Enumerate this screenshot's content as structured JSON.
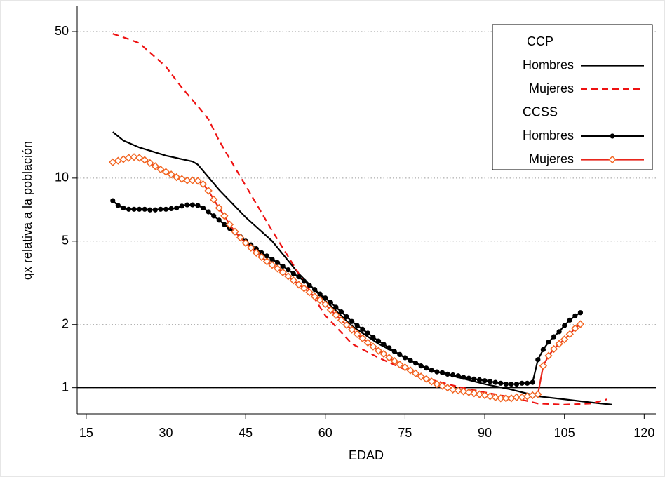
{
  "chart_data": {
    "type": "line",
    "x_label": "EDAD",
    "y_label": "qx relativa a la población",
    "xlim": [
      13.3,
      122.2
    ],
    "xticks": [
      15,
      30,
      45,
      60,
      75,
      90,
      105,
      120
    ],
    "ylim": [
      0.75,
      66.5
    ],
    "yticks": [
      1,
      2,
      5,
      10,
      50
    ],
    "y_log": true,
    "grid": true,
    "reference_line": 1,
    "legend_position": "top-right",
    "series_groups": [
      {
        "name": "CCP",
        "series": [
          {
            "name": "Hombres",
            "color": "#000000",
            "line_style": "solid",
            "marker": null,
            "x": [
              20,
              22,
              25,
              30,
              35,
              36,
              40,
              45,
              50,
              55,
              60,
              65,
              70,
              75,
              80,
              85,
              90,
              95,
              100,
              105,
              110,
              114
            ],
            "values": [
              16.6,
              15.1,
              14.0,
              12.8,
              12.0,
              11.6,
              8.8,
              6.5,
              5.0,
              3.5,
              2.6,
              1.97,
              1.62,
              1.39,
              1.21,
              1.12,
              1.04,
              0.98,
              0.91,
              0.88,
              0.85,
              0.83
            ]
          },
          {
            "name": "Mujeres",
            "color": "#ee1111",
            "line_style": "dashed",
            "marker": null,
            "x": [
              20,
              23,
              25,
              30,
              33,
              36,
              38,
              40,
              45,
              50,
              55,
              60,
              65,
              70,
              75,
              80,
              85,
              90,
              95,
              100,
              105,
              110,
              113
            ],
            "values": [
              48.8,
              46,
              44,
              34,
              27,
              22,
              19.1,
              15.1,
              9.2,
              5.6,
              3.5,
              2.21,
              1.62,
              1.39,
              1.22,
              1.09,
              1.01,
              0.95,
              0.9,
              0.84,
              0.83,
              0.84,
              0.88
            ]
          }
        ]
      },
      {
        "name": "CCSS",
        "series": [
          {
            "name": "Hombres",
            "color": "#000000",
            "line_style": "solid",
            "marker": "circle",
            "marker_color": "#000000",
            "x": [
              20,
              21,
              22,
              23,
              24,
              25,
              26,
              27,
              28,
              29,
              30,
              31,
              32,
              33,
              34,
              35,
              36,
              37,
              38,
              39,
              40,
              41,
              42,
              43,
              44,
              45,
              46,
              47,
              48,
              49,
              50,
              51,
              52,
              53,
              54,
              55,
              56,
              57,
              58,
              59,
              60,
              61,
              62,
              63,
              64,
              65,
              66,
              67,
              68,
              69,
              70,
              71,
              72,
              73,
              74,
              75,
              76,
              77,
              78,
              79,
              80,
              81,
              82,
              83,
              84,
              85,
              86,
              87,
              88,
              89,
              90,
              91,
              92,
              93,
              94,
              95,
              96,
              97,
              98,
              99,
              100,
              101,
              102,
              103,
              104,
              105,
              106,
              107,
              108
            ],
            "values": [
              7.8,
              7.4,
              7.2,
              7.1,
              7.1,
              7.1,
              7.1,
              7.05,
              7.05,
              7.1,
              7.1,
              7.15,
              7.2,
              7.35,
              7.45,
              7.45,
              7.4,
              7.2,
              6.9,
              6.6,
              6.3,
              6.0,
              5.75,
              5.5,
              5.25,
              5.0,
              4.8,
              4.6,
              4.4,
              4.25,
              4.1,
              3.95,
              3.8,
              3.65,
              3.5,
              3.38,
              3.22,
              3.08,
              2.94,
              2.8,
              2.68,
              2.55,
              2.42,
              2.3,
              2.18,
              2.07,
              1.98,
              1.9,
              1.82,
              1.74,
              1.67,
              1.61,
              1.55,
              1.49,
              1.44,
              1.39,
              1.35,
              1.31,
              1.27,
              1.24,
              1.21,
              1.19,
              1.18,
              1.16,
              1.15,
              1.14,
              1.12,
              1.11,
              1.1,
              1.09,
              1.08,
              1.07,
              1.06,
              1.05,
              1.04,
              1.04,
              1.04,
              1.05,
              1.05,
              1.06,
              1.36,
              1.52,
              1.65,
              1.75,
              1.85,
              1.98,
              2.1,
              2.2,
              2.28
            ]
          },
          {
            "name": "Mujeres",
            "color": "#e8261c",
            "line_style": "solid",
            "marker": "diamond",
            "marker_color": "#f26522",
            "x": [
              20,
              21,
              22,
              23,
              24,
              25,
              26,
              27,
              28,
              29,
              30,
              31,
              32,
              33,
              34,
              35,
              36,
              37,
              38,
              39,
              40,
              41,
              42,
              43,
              44,
              45,
              46,
              47,
              48,
              49,
              50,
              51,
              52,
              53,
              54,
              55,
              56,
              57,
              58,
              59,
              60,
              61,
              62,
              63,
              64,
              65,
              66,
              67,
              68,
              69,
              70,
              71,
              72,
              73,
              74,
              75,
              76,
              77,
              78,
              79,
              80,
              81,
              82,
              83,
              84,
              85,
              86,
              87,
              88,
              89,
              90,
              91,
              92,
              93,
              94,
              95,
              96,
              97,
              98,
              99,
              100,
              101,
              102,
              103,
              104,
              105,
              106,
              107,
              108
            ],
            "values": [
              11.9,
              12.1,
              12.3,
              12.5,
              12.6,
              12.5,
              12.2,
              11.8,
              11.4,
              11.0,
              10.7,
              10.4,
              10.1,
              9.9,
              9.75,
              9.75,
              9.7,
              9.35,
              8.7,
              7.9,
              7.2,
              6.6,
              6.0,
              5.55,
              5.2,
              4.9,
              4.65,
              4.4,
              4.2,
              4.0,
              3.85,
              3.7,
              3.55,
              3.4,
              3.25,
              3.1,
              2.98,
              2.85,
              2.72,
              2.62,
              2.5,
              2.35,
              2.22,
              2.1,
              1.99,
              1.89,
              1.8,
              1.72,
              1.64,
              1.57,
              1.5,
              1.45,
              1.39,
              1.34,
              1.29,
              1.25,
              1.21,
              1.17,
              1.13,
              1.1,
              1.07,
              1.04,
              1.02,
              1.0,
              0.98,
              0.97,
              0.96,
              0.95,
              0.94,
              0.93,
              0.92,
              0.91,
              0.9,
              0.89,
              0.89,
              0.89,
              0.9,
              0.9,
              0.91,
              0.92,
              0.93,
              1.27,
              1.42,
              1.53,
              1.62,
              1.7,
              1.8,
              1.92,
              2.01
            ]
          }
        ]
      }
    ]
  }
}
